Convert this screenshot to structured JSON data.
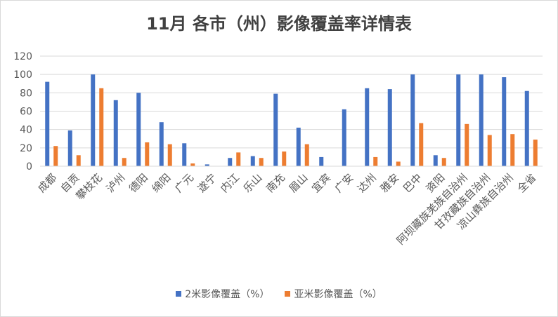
{
  "chart_data": {
    "type": "bar",
    "title": "11月 各市（州）影像覆盖率详情表",
    "categories": [
      "成都",
      "自贡",
      "攀枝花",
      "泸州",
      "德阳",
      "绵阳",
      "广元",
      "遂宁",
      "内江",
      "乐山",
      "南充",
      "眉山",
      "宜宾",
      "广安",
      "达州",
      "雅安",
      "巴中",
      "资阳",
      "阿坝藏族羌族自治州",
      "甘孜藏族自治州",
      "凉山彝族自治州",
      "全省"
    ],
    "series": [
      {
        "name": "2米影像覆盖（%）",
        "color": "#4472c4",
        "values": [
          92,
          39,
          100,
          72,
          80,
          48,
          25,
          2,
          9,
          11,
          79,
          42,
          10,
          62,
          85,
          84,
          100,
          12,
          100,
          100,
          97,
          82
        ]
      },
      {
        "name": "亚米影像覆盖（%）",
        "color": "#ed7d31",
        "values": [
          22,
          12,
          85,
          9,
          26,
          24,
          3,
          0,
          15,
          9,
          16,
          24,
          0,
          0,
          10,
          5,
          47,
          9,
          46,
          34,
          35,
          29
        ]
      }
    ],
    "ylim": [
      0,
      120
    ],
    "yticks": [
      0,
      20,
      40,
      60,
      80,
      100,
      120
    ],
    "grid": true,
    "legend_position": "bottom"
  }
}
